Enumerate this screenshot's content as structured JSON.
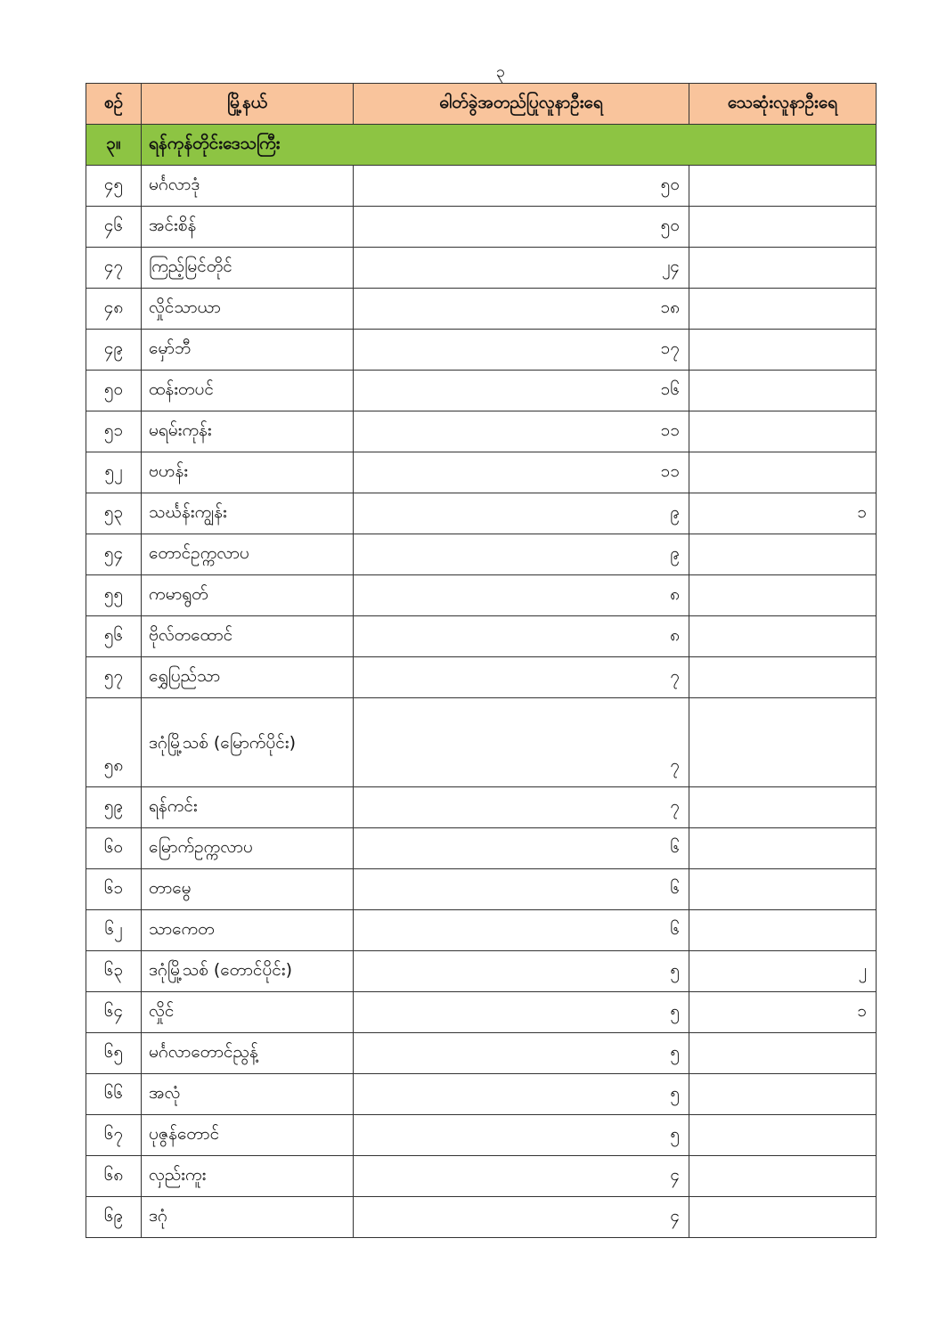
{
  "page_number": "၃",
  "header": {
    "col_no": "စဉ်",
    "col_township": "မြို့နယ်",
    "col_confirmed": "ဓါတ်ခွဲအတည်ပြုလူနာဦးရေ",
    "col_deaths": "သေဆုံးလူနာဦးရေ"
  },
  "section": {
    "no": "၃။",
    "title": "ရန်ကုန်တိုင်းဒေသကြီး"
  },
  "colors": {
    "header_bg": "#f9c49c",
    "section_bg": "#8dc443"
  },
  "rows": [
    {
      "no": "၄၅",
      "name": "မင်္ဂလာဒုံ",
      "confirmed": "၅၀",
      "deaths": ""
    },
    {
      "no": "၄၆",
      "name": "အင်းစိန်",
      "confirmed": "၅၀",
      "deaths": ""
    },
    {
      "no": "၄၇",
      "name": "ကြည့်မြင်တိုင်",
      "confirmed": "၂၄",
      "deaths": ""
    },
    {
      "no": "၄၈",
      "name": "လှိုင်သာယာ",
      "confirmed": "၁၈",
      "deaths": ""
    },
    {
      "no": "၄၉",
      "name": "မှော်ဘီ",
      "confirmed": "၁၇",
      "deaths": ""
    },
    {
      "no": "၅၀",
      "name": "ထန်းတပင်",
      "confirmed": "၁၆",
      "deaths": ""
    },
    {
      "no": "၅၁",
      "name": "မရမ်းကုန်း",
      "confirmed": "၁၁",
      "deaths": ""
    },
    {
      "no": "၅၂",
      "name": "ဗဟန်း",
      "confirmed": "၁၁",
      "deaths": ""
    },
    {
      "no": "၅၃",
      "name": "သင်္ဃန်းကျွန်း",
      "confirmed": "၉",
      "deaths": "၁"
    },
    {
      "no": "၅၄",
      "name": "တောင်ဥက္ကလာပ",
      "confirmed": "၉",
      "deaths": ""
    },
    {
      "no": "၅၅",
      "name": "ကမာရွတ်",
      "confirmed": "၈",
      "deaths": ""
    },
    {
      "no": "၅၆",
      "name": "ဗိုလ်တထောင်",
      "confirmed": "၈",
      "deaths": ""
    },
    {
      "no": "၅၇",
      "name": "ရွှေပြည်သာ",
      "confirmed": "၇",
      "deaths": ""
    },
    {
      "no": "၅၈",
      "name": "ဒဂုံမြို့သစ် (မြောက်ပိုင်း)",
      "confirmed": "၇",
      "deaths": ""
    },
    {
      "no": "၅၉",
      "name": "ရန်ကင်း",
      "confirmed": "၇",
      "deaths": ""
    },
    {
      "no": "၆၀",
      "name": "မြောက်ဥက္ကလာပ",
      "confirmed": "၆",
      "deaths": ""
    },
    {
      "no": "၆၁",
      "name": "တာမွေ",
      "confirmed": "၆",
      "deaths": ""
    },
    {
      "no": "၆၂",
      "name": "သာကေတ",
      "confirmed": "၆",
      "deaths": ""
    },
    {
      "no": "၆၃",
      "name": "ဒဂုံမြို့သစ် (တောင်ပိုင်း)",
      "confirmed": "၅",
      "deaths": "၂"
    },
    {
      "no": "၆၄",
      "name": "လှိုင်",
      "confirmed": "၅",
      "deaths": "၁"
    },
    {
      "no": "၆၅",
      "name": "မင်္ဂလာတောင်ညွန့်",
      "confirmed": "၅",
      "deaths": ""
    },
    {
      "no": "၆၆",
      "name": "အလုံ",
      "confirmed": "၅",
      "deaths": ""
    },
    {
      "no": "၆၇",
      "name": "ပုဇွန်တောင်",
      "confirmed": "၅",
      "deaths": ""
    },
    {
      "no": "၆၈",
      "name": "လှည်းကူး",
      "confirmed": "၄",
      "deaths": ""
    },
    {
      "no": "၆၉",
      "name": "ဒဂုံ",
      "confirmed": "၄",
      "deaths": ""
    }
  ]
}
